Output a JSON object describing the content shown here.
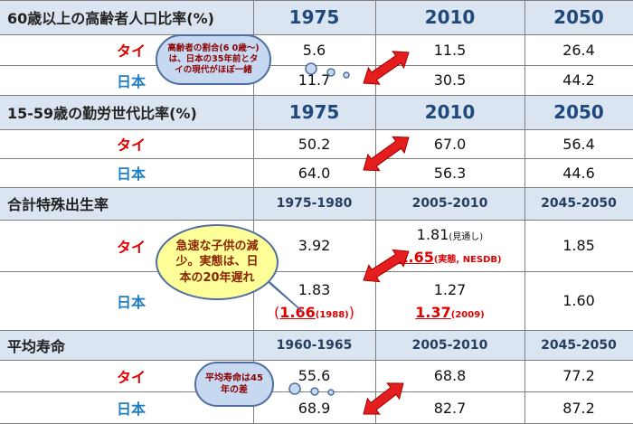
{
  "sections": [
    {
      "title": "60歳以上の高齢者人口比率(%)",
      "columns": [
        "1975",
        "2010",
        "2050"
      ],
      "rows": [
        {
          "label": "タイ",
          "cells": [
            {
              "value": "5.6"
            },
            {
              "value": "11.5"
            },
            {
              "value": "26.4"
            }
          ]
        },
        {
          "label": "日本",
          "cells": [
            {
              "value": "11.7"
            },
            {
              "value": "30.5"
            },
            {
              "value": "44.2"
            }
          ]
        }
      ]
    },
    {
      "title": "15-59歳の勤労世代比率(%)",
      "columns": [
        "1975",
        "2010",
        "2050"
      ],
      "rows": [
        {
          "label": "タイ",
          "cells": [
            {
              "value": "50.2"
            },
            {
              "value": "67.0"
            },
            {
              "value": "56.4"
            }
          ]
        },
        {
          "label": "日本",
          "cells": [
            {
              "value": "64.0"
            },
            {
              "value": "56.3"
            },
            {
              "value": "44.6"
            }
          ]
        }
      ]
    },
    {
      "title": "合計特殊出生率",
      "columns": [
        "1975-1980",
        "2005-2010",
        "2045-2050"
      ],
      "rows": [
        {
          "label": "タイ",
          "cells": [
            {
              "value": "3.92"
            },
            {
              "value": "1.81",
              "note": "(見通し)",
              "actual": "1.65",
              "actual_note": "(実態, NESDB)"
            },
            {
              "value": "1.85"
            }
          ]
        },
        {
          "label": "日本",
          "cells": [
            {
              "value": "1.83",
              "open": "(",
              "actual": "1.66",
              "actual_note": "(1988)",
              "close": ")"
            },
            {
              "value": "1.27",
              "actual": "1.37",
              "actual_note": "(2009)"
            },
            {
              "value": "1.60"
            }
          ]
        }
      ]
    },
    {
      "title": "平均寿命",
      "columns": [
        "1960-1965",
        "2005-2010",
        "2045-2050"
      ],
      "rows": [
        {
          "label": "タイ",
          "cells": [
            {
              "value": "55.6"
            },
            {
              "value": "68.8"
            },
            {
              "value": "77.2"
            }
          ]
        },
        {
          "label": "日本",
          "cells": [
            {
              "value": "68.9"
            },
            {
              "value": "82.7"
            },
            {
              "value": "87.2"
            }
          ]
        }
      ]
    }
  ],
  "callouts": [
    "高齢者の割合(6 0歳〜)は、日本の35年前とタイの現代がほぼ一緒",
    "急速な子供の減少。実態は、日本の20年遅れ",
    "平均寿命は45年の差"
  ]
}
